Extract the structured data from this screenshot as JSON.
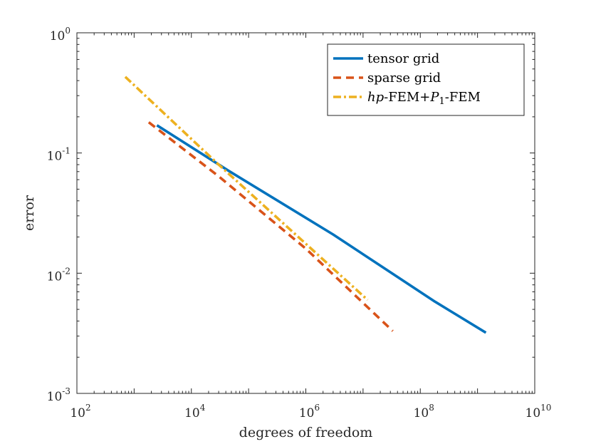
{
  "chart_data": {
    "type": "line",
    "title": "",
    "xlabel": "degrees of freedom",
    "ylabel": "error",
    "xscale": "log",
    "yscale": "log",
    "xlim": [
      100,
      10000000000
    ],
    "ylim": [
      0.001,
      1
    ],
    "x_ticks": [
      {
        "base": "10",
        "exp": "2"
      },
      {
        "base": "10",
        "exp": "4"
      },
      {
        "base": "10",
        "exp": "6"
      },
      {
        "base": "10",
        "exp": "8"
      },
      {
        "base": "10",
        "exp": "10"
      }
    ],
    "y_ticks": [
      {
        "base": "10",
        "exp": "-3"
      },
      {
        "base": "10",
        "exp": "-2"
      },
      {
        "base": "10",
        "exp": "-1"
      },
      {
        "base": "10",
        "exp": "0"
      }
    ],
    "legend_position": "top-right",
    "series": [
      {
        "name": "tensor grid",
        "label_parts": [
          {
            "text": "tensor grid",
            "style": "normal"
          }
        ],
        "color": "#0072BD",
        "dash": "solid",
        "x": [
          2500,
          45000,
          3000000,
          180000000,
          1400000000
        ],
        "y": [
          0.17,
          0.071,
          0.021,
          0.0058,
          0.0032
        ]
      },
      {
        "name": "sparse grid",
        "label_parts": [
          {
            "text": "sparse grid",
            "style": "normal"
          }
        ],
        "color": "#D95319",
        "dash": "dashed",
        "x": [
          1800,
          30000,
          1000000,
          33000000
        ],
        "y": [
          0.18,
          0.064,
          0.016,
          0.0033
        ]
      },
      {
        "name": "hp-FEM+P1-FEM",
        "label_parts": [
          {
            "text": "hp",
            "style": "italic"
          },
          {
            "text": "-FEM+",
            "style": "normal"
          },
          {
            "text": "P",
            "style": "italic"
          },
          {
            "text": "1",
            "style": "sub"
          },
          {
            "text": "-FEM",
            "style": "normal"
          }
        ],
        "color": "#EDB120",
        "dash": "dashdot",
        "x": [
          700,
          30000,
          12000000
        ],
        "y": [
          0.43,
          0.08,
          0.006
        ]
      }
    ]
  }
}
